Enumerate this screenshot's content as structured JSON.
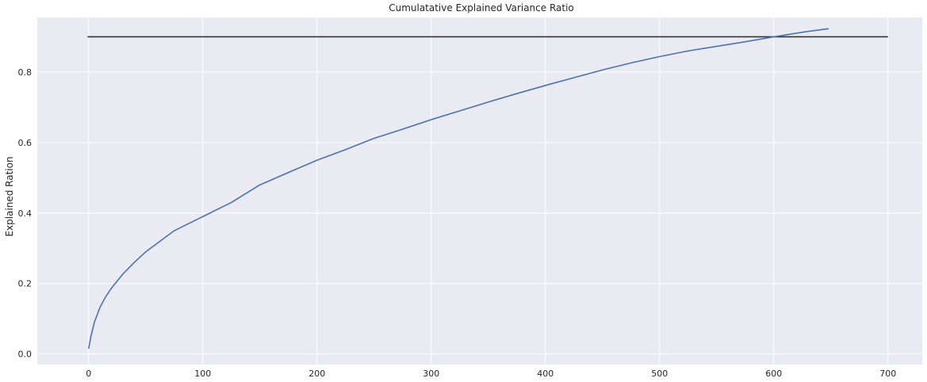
{
  "chart_data": {
    "type": "line",
    "title": "Cumulatative Explained Variance Ratio",
    "xlabel": "",
    "ylabel": "Explained Ration",
    "xlim": [
      -45,
      730
    ],
    "ylim": [
      -0.03,
      0.955
    ],
    "xticks": [
      0,
      100,
      200,
      300,
      400,
      500,
      600,
      700
    ],
    "yticks": [
      0.0,
      0.2,
      0.4,
      0.6,
      0.8
    ],
    "ytick_labels": [
      "0.0",
      "0.2",
      "0.4",
      "0.6",
      "0.8"
    ],
    "grid": true,
    "background_color": "#eaeaf2",
    "grid_color": "#ffffff",
    "series": [
      {
        "color": "#4c72b0",
        "x": [
          0,
          2,
          5,
          10,
          15,
          20,
          30,
          40,
          50,
          75,
          100,
          125,
          150,
          175,
          200,
          225,
          250,
          275,
          300,
          325,
          350,
          375,
          400,
          425,
          450,
          475,
          500,
          525,
          550,
          575,
          600,
          625,
          648
        ],
        "y": [
          0.015,
          0.05,
          0.09,
          0.133,
          0.163,
          0.187,
          0.227,
          0.26,
          0.29,
          0.35,
          0.39,
          0.43,
          0.48,
          0.515,
          0.55,
          0.58,
          0.612,
          0.638,
          0.665,
          0.69,
          0.715,
          0.739,
          0.762,
          0.784,
          0.806,
          0.826,
          0.844,
          0.86,
          0.873,
          0.886,
          0.9,
          0.913,
          0.923
        ]
      }
    ],
    "reference_line": {
      "y": 0.9,
      "x_start": -1,
      "x_end": 700,
      "color": "#333333"
    }
  }
}
